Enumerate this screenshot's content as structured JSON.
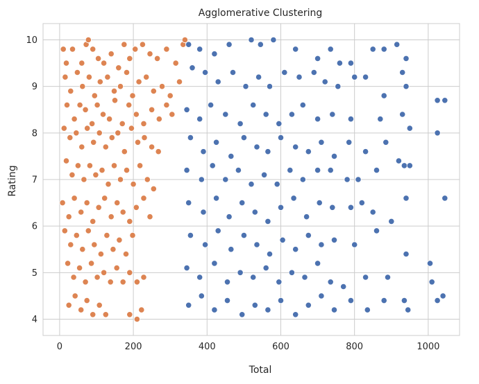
{
  "chart_data": {
    "type": "scatter",
    "title": "Agglomerative Clustering",
    "xlabel": "Total",
    "ylabel": "Rating",
    "xlim": [
      -45,
      1085
    ],
    "ylim": [
      3.65,
      10.35
    ],
    "xticks": [
      0,
      200,
      400,
      600,
      800,
      1000
    ],
    "yticks": [
      4,
      5,
      6,
      7,
      8,
      9,
      10
    ],
    "grid": true,
    "legend": "none",
    "series": [
      {
        "color": "#dd8452",
        "points": [
          [
            10,
            9.8
          ],
          [
            18,
            9.5
          ],
          [
            35,
            9.8
          ],
          [
            60,
            9.5
          ],
          [
            72,
            9.9
          ],
          [
            78,
            10.0
          ],
          [
            90,
            9.8
          ],
          [
            105,
            9.6
          ],
          [
            120,
            9.5
          ],
          [
            140,
            9.7
          ],
          [
            160,
            9.4
          ],
          [
            175,
            9.9
          ],
          [
            190,
            9.6
          ],
          [
            205,
            9.8
          ],
          [
            225,
            9.9
          ],
          [
            245,
            9.7
          ],
          [
            265,
            9.6
          ],
          [
            290,
            9.8
          ],
          [
            315,
            9.5
          ],
          [
            335,
            9.9
          ],
          [
            340,
            10.0
          ],
          [
            15,
            9.2
          ],
          [
            30,
            8.9
          ],
          [
            48,
            9.3
          ],
          [
            62,
            9.0
          ],
          [
            80,
            9.2
          ],
          [
            95,
            8.8
          ],
          [
            110,
            9.1
          ],
          [
            130,
            9.2
          ],
          [
            148,
            8.9
          ],
          [
            165,
            9.0
          ],
          [
            182,
            9.3
          ],
          [
            198,
            8.8
          ],
          [
            215,
            9.1
          ],
          [
            235,
            9.2
          ],
          [
            255,
            8.9
          ],
          [
            278,
            9.0
          ],
          [
            300,
            8.8
          ],
          [
            325,
            9.1
          ],
          [
            20,
            8.6
          ],
          [
            40,
            8.3
          ],
          [
            55,
            8.6
          ],
          [
            70,
            8.5
          ],
          [
            88,
            8.2
          ],
          [
            102,
            8.6
          ],
          [
            118,
            8.4
          ],
          [
            135,
            8.3
          ],
          [
            150,
            8.7
          ],
          [
            170,
            8.2
          ],
          [
            188,
            8.6
          ],
          [
            208,
            8.4
          ],
          [
            228,
            8.2
          ],
          [
            250,
            8.5
          ],
          [
            270,
            8.3
          ],
          [
            290,
            8.6
          ],
          [
            305,
            8.4
          ],
          [
            12,
            8.1
          ],
          [
            28,
            7.9
          ],
          [
            45,
            8.0
          ],
          [
            60,
            7.7
          ],
          [
            75,
            8.1
          ],
          [
            92,
            7.8
          ],
          [
            108,
            8.0
          ],
          [
            125,
            7.7
          ],
          [
            142,
            7.9
          ],
          [
            158,
            8.0
          ],
          [
            176,
            7.6
          ],
          [
            195,
            8.1
          ],
          [
            212,
            7.8
          ],
          [
            230,
            7.9
          ],
          [
            250,
            7.7
          ],
          [
            268,
            7.6
          ],
          [
            18,
            7.4
          ],
          [
            34,
            7.1
          ],
          [
            50,
            7.3
          ],
          [
            66,
            7.0
          ],
          [
            82,
            7.3
          ],
          [
            98,
            7.1
          ],
          [
            115,
            7.2
          ],
          [
            132,
            6.9
          ],
          [
            148,
            7.3
          ],
          [
            165,
            7.0
          ],
          [
            182,
            7.2
          ],
          [
            200,
            6.9
          ],
          [
            218,
            7.3
          ],
          [
            238,
            7.0
          ],
          [
            255,
            6.8
          ],
          [
            8,
            6.5
          ],
          [
            25,
            6.2
          ],
          [
            40,
            6.6
          ],
          [
            58,
            6.3
          ],
          [
            74,
            6.5
          ],
          [
            90,
            6.1
          ],
          [
            106,
            6.4
          ],
          [
            122,
            6.6
          ],
          [
            140,
            6.2
          ],
          [
            156,
            6.5
          ],
          [
            172,
            6.3
          ],
          [
            190,
            6.1
          ],
          [
            208,
            6.4
          ],
          [
            228,
            6.6
          ],
          [
            245,
            6.2
          ],
          [
            14,
            5.9
          ],
          [
            30,
            5.6
          ],
          [
            46,
            5.8
          ],
          [
            62,
            5.5
          ],
          [
            78,
            5.9
          ],
          [
            94,
            5.6
          ],
          [
            112,
            5.4
          ],
          [
            128,
            5.8
          ],
          [
            145,
            5.5
          ],
          [
            162,
            5.7
          ],
          [
            180,
            5.4
          ],
          [
            198,
            5.8
          ],
          [
            22,
            5.2
          ],
          [
            38,
            4.9
          ],
          [
            54,
            5.1
          ],
          [
            70,
            4.8
          ],
          [
            86,
            5.2
          ],
          [
            102,
            4.9
          ],
          [
            120,
            5.0
          ],
          [
            138,
            4.8
          ],
          [
            155,
            5.1
          ],
          [
            172,
            4.8
          ],
          [
            190,
            5.0
          ],
          [
            210,
            4.8
          ],
          [
            228,
            4.9
          ],
          [
            25,
            4.3
          ],
          [
            42,
            4.5
          ],
          [
            58,
            4.2
          ],
          [
            74,
            4.4
          ],
          [
            90,
            4.1
          ],
          [
            108,
            4.3
          ],
          [
            125,
            4.1
          ],
          [
            190,
            4.1
          ],
          [
            210,
            4.0
          ],
          [
            222,
            4.2
          ]
        ]
      },
      {
        "color": "#4c72b0",
        "points": [
          [
            350,
            9.9
          ],
          [
            380,
            9.8
          ],
          [
            420,
            9.7
          ],
          [
            460,
            9.9
          ],
          [
            520,
            10.0
          ],
          [
            545,
            9.9
          ],
          [
            580,
            10.0
          ],
          [
            640,
            9.8
          ],
          [
            700,
            9.6
          ],
          [
            735,
            9.8
          ],
          [
            760,
            9.5
          ],
          [
            790,
            9.5
          ],
          [
            850,
            9.8
          ],
          [
            880,
            9.8
          ],
          [
            915,
            9.9
          ],
          [
            940,
            9.6
          ],
          [
            360,
            9.4
          ],
          [
            395,
            9.3
          ],
          [
            430,
            9.1
          ],
          [
            470,
            9.3
          ],
          [
            505,
            9.0
          ],
          [
            540,
            9.2
          ],
          [
            570,
            9.0
          ],
          [
            610,
            9.3
          ],
          [
            650,
            9.2
          ],
          [
            690,
            9.3
          ],
          [
            720,
            9.1
          ],
          [
            755,
            9.0
          ],
          [
            800,
            9.2
          ],
          [
            830,
            9.2
          ],
          [
            880,
            8.8
          ],
          [
            930,
            9.3
          ],
          [
            940,
            9.0
          ],
          [
            345,
            8.5
          ],
          [
            380,
            8.3
          ],
          [
            410,
            8.6
          ],
          [
            450,
            8.4
          ],
          [
            490,
            8.2
          ],
          [
            525,
            8.6
          ],
          [
            560,
            8.4
          ],
          [
            595,
            8.2
          ],
          [
            630,
            8.4
          ],
          [
            660,
            8.6
          ],
          [
            700,
            8.3
          ],
          [
            740,
            8.4
          ],
          [
            790,
            8.3
          ],
          [
            870,
            8.3
          ],
          [
            930,
            8.4
          ],
          [
            1025,
            8.7
          ],
          [
            1045,
            8.7
          ],
          [
            355,
            7.9
          ],
          [
            390,
            7.6
          ],
          [
            425,
            7.8
          ],
          [
            465,
            7.5
          ],
          [
            500,
            7.9
          ],
          [
            535,
            7.7
          ],
          [
            565,
            7.6
          ],
          [
            600,
            7.9
          ],
          [
            640,
            7.7
          ],
          [
            675,
            7.6
          ],
          [
            710,
            7.8
          ],
          [
            745,
            7.5
          ],
          [
            785,
            7.8
          ],
          [
            830,
            7.6
          ],
          [
            885,
            7.8
          ],
          [
            950,
            8.1
          ],
          [
            1025,
            8.0
          ],
          [
            345,
            7.2
          ],
          [
            385,
            7.0
          ],
          [
            415,
            7.3
          ],
          [
            450,
            7.0
          ],
          [
            485,
            7.2
          ],
          [
            520,
            6.9
          ],
          [
            555,
            7.1
          ],
          [
            590,
            6.9
          ],
          [
            625,
            7.2
          ],
          [
            660,
            7.0
          ],
          [
            700,
            7.2
          ],
          [
            735,
            7.2
          ],
          [
            780,
            7.0
          ],
          [
            810,
            7.0
          ],
          [
            860,
            7.2
          ],
          [
            920,
            7.4
          ],
          [
            935,
            7.3
          ],
          [
            950,
            7.3
          ],
          [
            350,
            6.5
          ],
          [
            390,
            6.3
          ],
          [
            425,
            6.6
          ],
          [
            460,
            6.2
          ],
          [
            495,
            6.5
          ],
          [
            530,
            6.3
          ],
          [
            565,
            6.1
          ],
          [
            600,
            6.4
          ],
          [
            635,
            6.6
          ],
          [
            670,
            6.2
          ],
          [
            705,
            6.5
          ],
          [
            740,
            6.4
          ],
          [
            790,
            6.4
          ],
          [
            820,
            6.5
          ],
          [
            850,
            6.3
          ],
          [
            900,
            6.1
          ],
          [
            940,
            6.6
          ],
          [
            1045,
            6.6
          ],
          [
            355,
            5.8
          ],
          [
            395,
            5.6
          ],
          [
            430,
            5.9
          ],
          [
            465,
            5.5
          ],
          [
            500,
            5.8
          ],
          [
            535,
            5.6
          ],
          [
            570,
            5.4
          ],
          [
            605,
            5.7
          ],
          [
            640,
            5.5
          ],
          [
            675,
            5.8
          ],
          [
            710,
            5.6
          ],
          [
            745,
            5.7
          ],
          [
            800,
            5.6
          ],
          [
            860,
            5.9
          ],
          [
            940,
            5.4
          ],
          [
            345,
            5.1
          ],
          [
            380,
            4.9
          ],
          [
            420,
            5.2
          ],
          [
            455,
            4.8
          ],
          [
            490,
            5.0
          ],
          [
            525,
            4.9
          ],
          [
            560,
            5.1
          ],
          [
            595,
            4.8
          ],
          [
            630,
            5.0
          ],
          [
            665,
            4.9
          ],
          [
            700,
            5.2
          ],
          [
            735,
            4.8
          ],
          [
            770,
            4.7
          ],
          [
            830,
            4.9
          ],
          [
            890,
            4.9
          ],
          [
            1005,
            5.2
          ],
          [
            1010,
            4.8
          ],
          [
            350,
            4.3
          ],
          [
            385,
            4.5
          ],
          [
            420,
            4.2
          ],
          [
            455,
            4.4
          ],
          [
            495,
            4.1
          ],
          [
            530,
            4.3
          ],
          [
            565,
            4.2
          ],
          [
            600,
            4.4
          ],
          [
            640,
            4.1
          ],
          [
            675,
            4.3
          ],
          [
            710,
            4.5
          ],
          [
            745,
            4.2
          ],
          [
            790,
            4.4
          ],
          [
            835,
            4.2
          ],
          [
            880,
            4.4
          ],
          [
            935,
            4.4
          ],
          [
            945,
            4.2
          ],
          [
            1025,
            4.4
          ],
          [
            1040,
            4.5
          ]
        ]
      }
    ]
  }
}
